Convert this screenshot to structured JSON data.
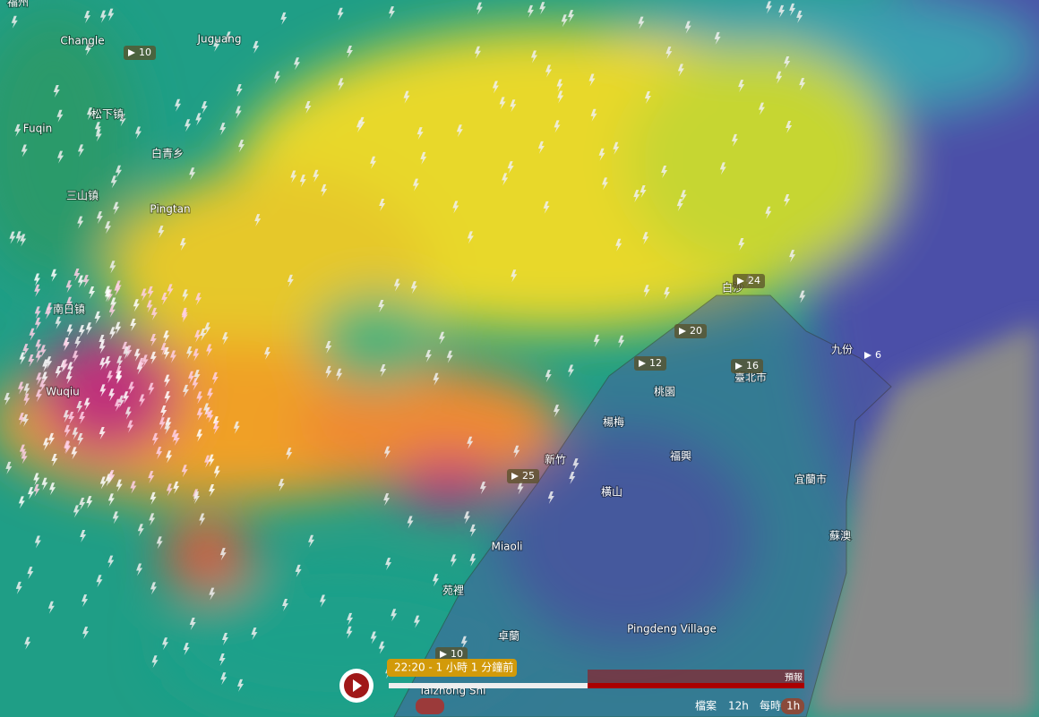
{
  "places": [
    "福州",
    "Changle",
    "Juguang",
    "Fuqin",
    "松下镇",
    "白青乡",
    "Pingtan",
    "三山镇",
    "南日镇",
    "Wuqiu",
    "白沙",
    "九份",
    "臺北市",
    "桃園",
    "楊梅",
    "新竹",
    "福興",
    "宜蘭市",
    "橫山",
    "蘇澳",
    "Miaoli",
    "苑裡",
    "卓蘭",
    "Pingdeng Village",
    "Taizhong Shi"
  ],
  "wind": [
    10,
    24,
    20,
    12,
    16,
    6,
    25,
    10
  ],
  "timeline": {
    "current": "22:20 - 1 小時 1 分鐘前",
    "forecast": "預報",
    "archive": "檔案",
    "range": "12h",
    "step_label": "每時",
    "step": "1h"
  }
}
